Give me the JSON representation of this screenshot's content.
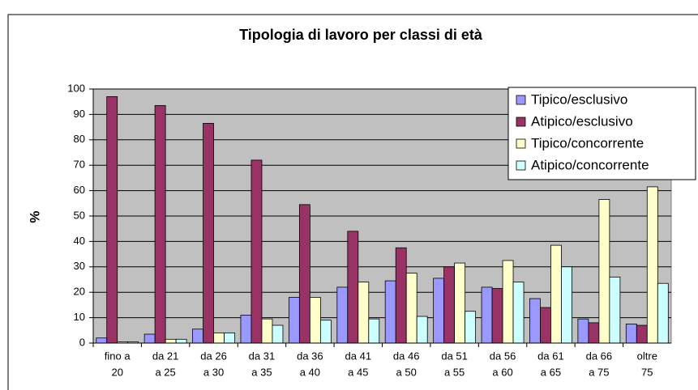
{
  "chart_data": {
    "type": "bar",
    "title": "Tipologia di lavoro per classi di età",
    "y_label": "%",
    "categories": [
      [
        "fino a",
        "20"
      ],
      [
        "da 21",
        "a 25"
      ],
      [
        "da 26",
        "a 30"
      ],
      [
        "da 31",
        "a 35"
      ],
      [
        "da 36",
        "a 40"
      ],
      [
        "da 41",
        "a 45"
      ],
      [
        "da 46",
        "a 50"
      ],
      [
        "da 51",
        "a 55"
      ],
      [
        "da 56",
        "a 60"
      ],
      [
        "da 61",
        "a 65"
      ],
      [
        "da 66",
        "a 75"
      ],
      [
        "oltre",
        "75"
      ]
    ],
    "series": [
      {
        "name": "Tipico/esclusivo",
        "color": "#9999ff",
        "values": [
          2,
          3.5,
          5.5,
          11,
          18,
          22,
          24.5,
          25.5,
          22,
          17.5,
          9.5,
          7.5
        ]
      },
      {
        "name": "Atipico/esclusivo",
        "color": "#993366",
        "values": [
          97,
          93.5,
          86.5,
          72,
          54.5,
          44,
          37.5,
          30,
          21.5,
          14,
          8,
          7
        ]
      },
      {
        "name": "Tipico/concorrente",
        "color": "#ffffcc",
        "values": [
          0.5,
          1.5,
          4,
          9.5,
          18,
          24,
          27.5,
          31.5,
          32.5,
          38.5,
          56.5,
          61.5
        ]
      },
      {
        "name": "Atipico/concorrente",
        "color": "#ccffff",
        "values": [
          0.5,
          1.5,
          4,
          7,
          9,
          9.5,
          10.5,
          12.5,
          24,
          30,
          26,
          23.5
        ]
      }
    ],
    "ylim": [
      0,
      100
    ],
    "yticks": [
      0,
      10,
      20,
      30,
      40,
      50,
      60,
      70,
      80,
      90,
      100
    ],
    "grid": true,
    "legend": "top-right",
    "plot_background": "#c0c0c0"
  }
}
